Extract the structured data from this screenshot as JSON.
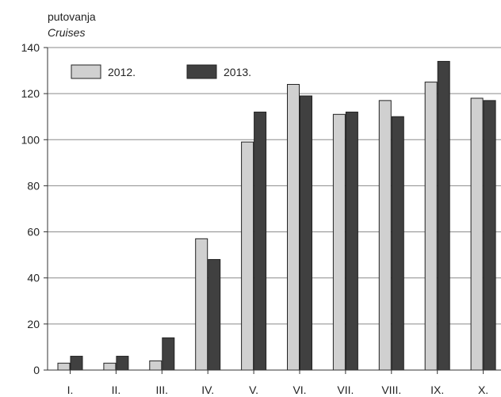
{
  "chart_data": {
    "type": "bar",
    "ylabel": "putovanja",
    "ylabel_sub": "Cruises",
    "categories": [
      "I.",
      "II.",
      "III.",
      "IV.",
      "V.",
      "VI.",
      "VII.",
      "VIII.",
      "IX.",
      "X."
    ],
    "series": [
      {
        "name": "2012.",
        "color": "#d0d0d0",
        "values": [
          3,
          3,
          4,
          57,
          99,
          124,
          111,
          117,
          125,
          118
        ]
      },
      {
        "name": "2013.",
        "color": "#404040",
        "values": [
          6,
          6,
          14,
          48,
          112,
          119,
          112,
          110,
          134,
          117
        ]
      }
    ],
    "ylim": [
      0,
      140
    ],
    "yticks": [
      0,
      20,
      40,
      60,
      80,
      100,
      120,
      140
    ],
    "grid": true,
    "legend_position": "top-left"
  }
}
